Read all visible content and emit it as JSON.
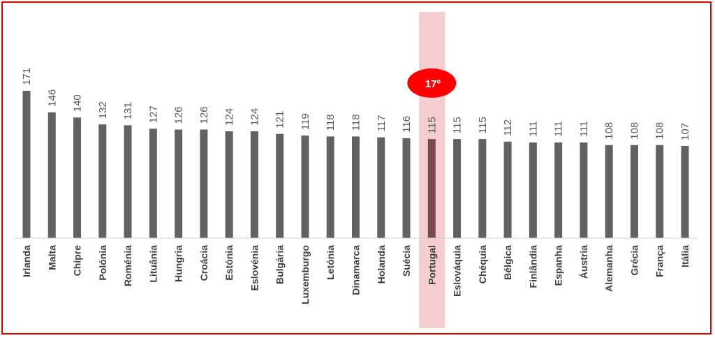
{
  "chart_data": {
    "type": "bar",
    "categories": [
      "Irlanda",
      "Malta",
      "Chipre",
      "Polónia",
      "Roménia",
      "Lituânia",
      "Hungria",
      "Croácia",
      "Estónia",
      "Eslovénia",
      "Bulgária",
      "Luxemburgo",
      "Letónia",
      "Dinamarca",
      "Holanda",
      "Suécia",
      "Portugal",
      "Eslováquia",
      "Chéquia",
      "Bélgica",
      "Finlândia",
      "Espanha",
      "Áustria",
      "Alemanha",
      "Grécia",
      "França",
      "Itália"
    ],
    "values": [
      171,
      146,
      140,
      132,
      131,
      127,
      126,
      126,
      124,
      124,
      121,
      119,
      118,
      118,
      117,
      116,
      115,
      115,
      115,
      112,
      111,
      111,
      111,
      108,
      108,
      108,
      107
    ],
    "ylim": [
      0,
      171
    ],
    "grid": false,
    "data_labels": true,
    "highlight": {
      "category": "Portugal",
      "badge": "17º"
    },
    "colors": {
      "bar": "#626262",
      "highlight_bar": "#7a4a4e",
      "highlight_band": "#f2c4c6",
      "badge": "#ff0000",
      "frame": "#e00000"
    }
  }
}
